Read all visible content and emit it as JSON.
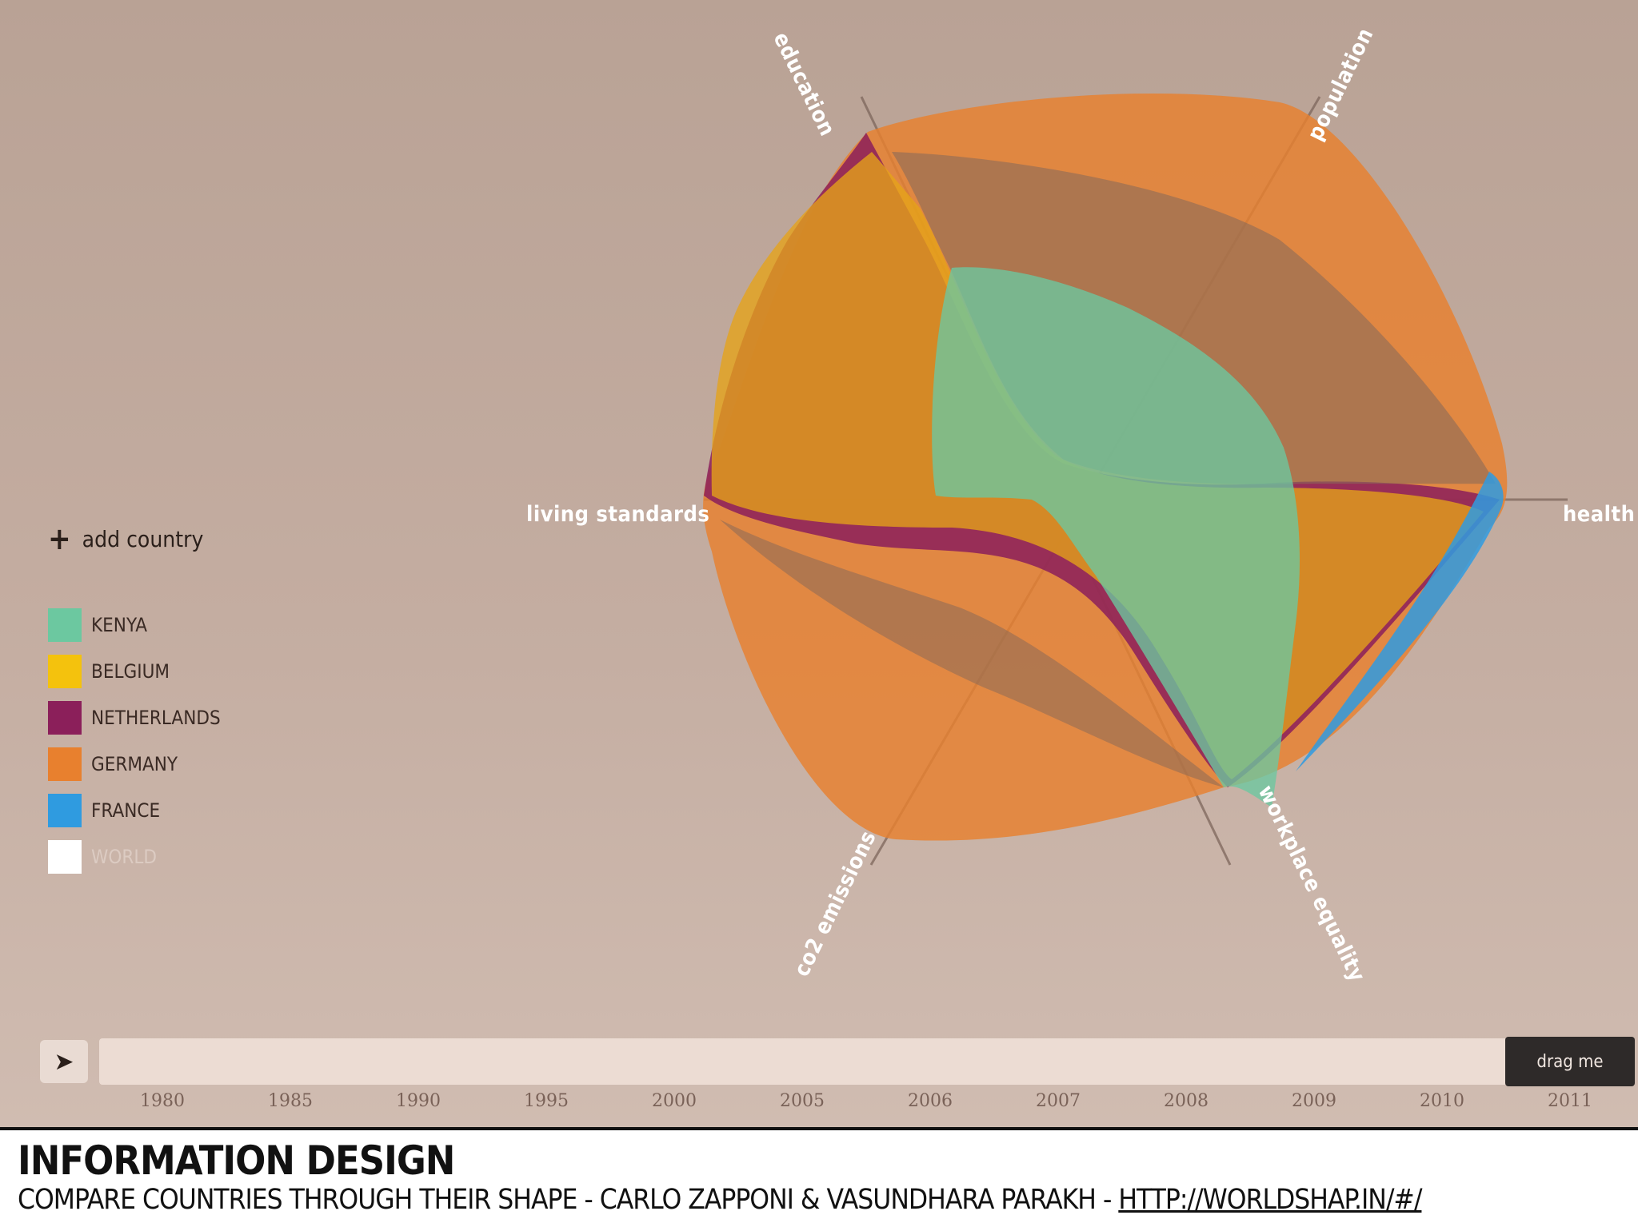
{
  "chart": {
    "axes": [
      "education",
      "population",
      "health",
      "workplace equality",
      "co2 emissions",
      "living standards"
    ]
  },
  "controls": {
    "add_country_label": "add country",
    "play_icon": "play-icon",
    "play_glyph": "➤",
    "drag_label": "drag me",
    "years": [
      "1980",
      "1985",
      "1990",
      "1995",
      "2000",
      "2005",
      "2006",
      "2007",
      "2008",
      "2009",
      "2010",
      "2011"
    ],
    "selected_year": "2011"
  },
  "legend": [
    {
      "name": "KENYA",
      "color": "#6cc8a0"
    },
    {
      "name": "BELGIUM",
      "color": "#f4c20d"
    },
    {
      "name": "NETHERLANDS",
      "color": "#8b1f5a"
    },
    {
      "name": "GERMANY",
      "color": "#e8802e"
    },
    {
      "name": "FRANCE",
      "color": "#2f9be0"
    },
    {
      "name": "WORLD",
      "color": "#ffffff"
    }
  ],
  "footer": {
    "title": "INFORMATION DESIGN",
    "subtitle_text": "COMPARE COUNTRIES THROUGH THEIR SHAPE - CARLO ZAPPONI & VASUNDHARA PARAKH - ",
    "link": "HTTP://WORLDSHAP.IN/#/"
  }
}
